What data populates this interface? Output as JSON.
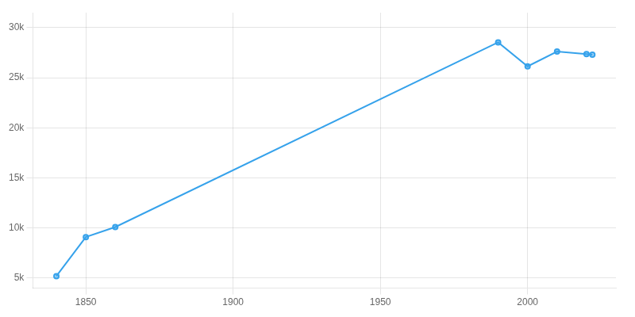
{
  "chart_data": {
    "type": "line",
    "x": [
      1840,
      1850,
      1860,
      1990,
      2000,
      2010,
      2020,
      2022
    ],
    "values": [
      5200,
      9100,
      10100,
      28540,
      26139,
      27620,
      27367,
      27300
    ],
    "marker": "circle",
    "xlim": [
      1832,
      2030
    ],
    "xticks": [
      1850,
      1900,
      1950,
      2000
    ],
    "ylim": [
      4000,
      31500
    ],
    "yticks": [
      {
        "value": 5000,
        "label": "5k"
      },
      {
        "value": 10000,
        "label": "10k"
      },
      {
        "value": 15000,
        "label": "15k"
      },
      {
        "value": 20000,
        "label": "20k"
      },
      {
        "value": 25000,
        "label": "25k"
      },
      {
        "value": 30000,
        "label": "30k"
      }
    ],
    "grid": true
  }
}
